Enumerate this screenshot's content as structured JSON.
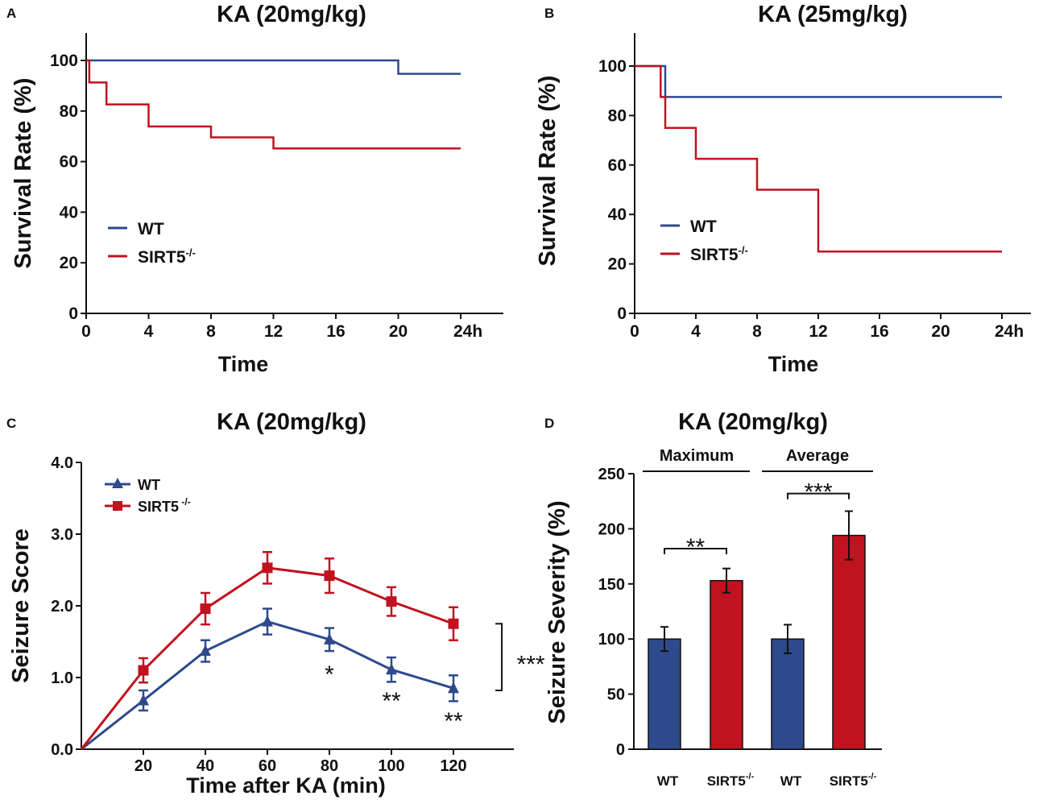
{
  "colors": {
    "wt": "#2e4a8c",
    "ko": "#c1121f",
    "axis": "#111111"
  },
  "chart_data": [
    {
      "id": "A",
      "type": "line",
      "step": true,
      "panel_label": "A",
      "title": "KA (20mg/kg)",
      "xlabel": "Time",
      "ylabel": "Survival Rate (%)",
      "xlim": [
        0,
        24
      ],
      "ylim": [
        0,
        100
      ],
      "xticks": [
        0,
        4,
        8,
        12,
        16,
        20,
        24
      ],
      "xtick_labels": [
        "0",
        "4",
        "8",
        "12",
        "16",
        "20",
        "24h"
      ],
      "yticks": [
        0,
        20,
        40,
        60,
        80,
        100
      ],
      "ytick_labels": [
        "0",
        "20",
        "40",
        "60",
        "80",
        "100"
      ],
      "legend": {
        "wt": "WT",
        "ko": "SIRT5",
        "ko_sup": "-/-"
      },
      "series": [
        {
          "name": "WT",
          "color_key": "wt",
          "x": [
            0,
            20,
            24
          ],
          "y": [
            100,
            94.7,
            94.7
          ]
        },
        {
          "name": "SIRT5-/-",
          "color_key": "ko",
          "x": [
            0,
            0.2,
            1.3,
            4,
            8,
            12,
            24
          ],
          "y": [
            100,
            91.3,
            82.6,
            73.9,
            69.6,
            65.2,
            65.2
          ]
        }
      ]
    },
    {
      "id": "B",
      "type": "line",
      "step": true,
      "panel_label": "B",
      "title": "KA (25mg/kg)",
      "xlabel": "Time",
      "ylabel": "Survival Rate (%)",
      "xlim": [
        0,
        24
      ],
      "ylim": [
        0,
        100
      ],
      "xticks": [
        0,
        4,
        8,
        12,
        16,
        20,
        24
      ],
      "xtick_labels": [
        "0",
        "4",
        "8",
        "12",
        "16",
        "20",
        "24h"
      ],
      "yticks": [
        0,
        20,
        40,
        60,
        80,
        100
      ],
      "ytick_labels": [
        "0",
        "20",
        "40",
        "60",
        "80",
        "100"
      ],
      "legend": {
        "wt": "WT",
        "ko": "SIRT5",
        "ko_sup": "-/-"
      },
      "series": [
        {
          "name": "WT",
          "color_key": "wt",
          "x": [
            0,
            2,
            24
          ],
          "y": [
            100,
            87.5,
            87.5
          ]
        },
        {
          "name": "SIRT5-/-",
          "color_key": "ko",
          "x": [
            0,
            1.7,
            2,
            4,
            8,
            12,
            24
          ],
          "y": [
            100,
            87.5,
            75,
            62.5,
            50,
            25,
            25
          ]
        }
      ]
    },
    {
      "id": "C",
      "type": "line",
      "panel_label": "C",
      "title": "KA (20mg/kg)",
      "xlabel": "Time after KA (min)",
      "ylabel": "Seizure Score",
      "xlim": [
        0,
        140
      ],
      "ylim": [
        0,
        4
      ],
      "xticks": [
        20,
        40,
        60,
        80,
        100,
        120
      ],
      "xtick_labels": [
        "20",
        "40",
        "60",
        "80",
        "100",
        "120"
      ],
      "yticks": [
        0,
        1,
        2,
        3,
        4
      ],
      "ytick_labels": [
        "0.0",
        "1.0",
        "2.0",
        "3.0",
        "4.0"
      ],
      "legend": {
        "wt": "WT",
        "ko": "SIRT5",
        "ko_sup": "-/-"
      },
      "series": [
        {
          "name": "WT",
          "color_key": "wt",
          "marker": "triangle",
          "x": [
            0,
            20,
            40,
            60,
            80,
            100,
            120
          ],
          "y": [
            0,
            0.68,
            1.37,
            1.78,
            1.53,
            1.11,
            0.85
          ],
          "err": [
            0,
            0.14,
            0.15,
            0.18,
            0.16,
            0.17,
            0.18
          ]
        },
        {
          "name": "SIRT5-/-",
          "color_key": "ko",
          "marker": "square",
          "x": [
            0,
            20,
            40,
            60,
            80,
            100,
            120
          ],
          "y": [
            0,
            1.1,
            1.96,
            2.53,
            2.42,
            2.06,
            1.75
          ],
          "err": [
            0,
            0.17,
            0.22,
            0.22,
            0.24,
            0.2,
            0.23
          ]
        }
      ],
      "annotations": [
        {
          "text": "*",
          "x": 80,
          "y": 1.02
        },
        {
          "text": "**",
          "x": 100,
          "y": 0.65
        },
        {
          "text": "**",
          "x": 120,
          "y": 0.37
        },
        {
          "text": "***",
          "bracket_x": 126,
          "y_from": 0.82,
          "y_to": 1.75
        }
      ]
    },
    {
      "id": "D",
      "type": "bar",
      "panel_label": "D",
      "title": "KA (20mg/kg)",
      "ylabel": "Seizure Severity (%)",
      "ylim": [
        0,
        250
      ],
      "yticks": [
        0,
        50,
        100,
        150,
        200,
        250
      ],
      "ytick_labels": [
        "0",
        "50",
        "100",
        "150",
        "200",
        "250"
      ],
      "groups": [
        "Maximum",
        "Average"
      ],
      "categories": [
        {
          "label": "WT",
          "sup": ""
        },
        {
          "label": "SIRT5",
          "sup": "-/-"
        },
        {
          "label": "WT",
          "sup": ""
        },
        {
          "label": "SIRT5",
          "sup": "-/-"
        }
      ],
      "values": [
        100,
        153,
        100,
        194
      ],
      "errors": [
        11,
        11,
        13,
        22
      ],
      "color_keys": [
        "wt",
        "ko",
        "wt",
        "ko"
      ],
      "significance": [
        {
          "text": "**",
          "from": 0,
          "to": 1,
          "y": 182
        },
        {
          "text": "***",
          "from": 2,
          "to": 3,
          "y": 232
        }
      ]
    }
  ]
}
